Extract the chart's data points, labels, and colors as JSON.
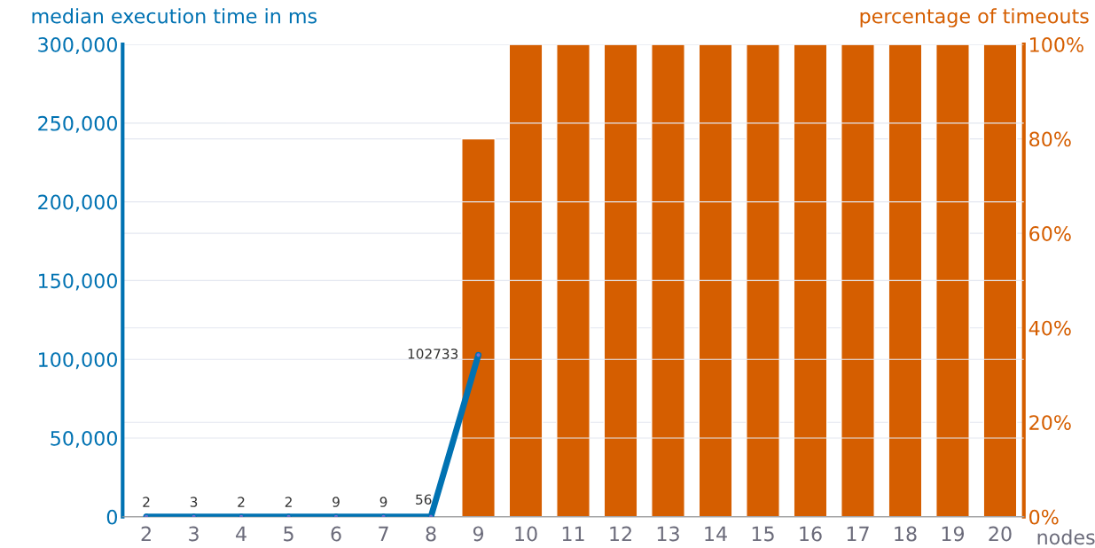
{
  "chart_data": {
    "type": "bar",
    "categories": [
      "2",
      "3",
      "4",
      "5",
      "6",
      "7",
      "8",
      "9",
      "10",
      "11",
      "12",
      "13",
      "14",
      "15",
      "16",
      "17",
      "18",
      "19",
      "20"
    ],
    "xlabel": "nodes",
    "ylabel": "median execution time in ms",
    "y2label": "percentage of timeouts",
    "series": [
      {
        "axis": "y2",
        "color": "#d55e00",
        "values": [
          null,
          null,
          null,
          null,
          null,
          null,
          null,
          80,
          100,
          100,
          100,
          100,
          100,
          100,
          100,
          100,
          100,
          100,
          100
        ]
      },
      {
        "type": "line",
        "axis": "y",
        "color": "#0072b2",
        "marker": "circle",
        "values": [
          2,
          3,
          2,
          2,
          9,
          9,
          56,
          102733,
          null,
          null,
          null,
          null,
          null,
          null,
          null,
          null,
          null,
          null,
          null
        ],
        "value_labels": [
          "2",
          "3",
          "2",
          "2",
          "9",
          "9",
          "56",
          "102733",
          null,
          null,
          null,
          null,
          null,
          null,
          null,
          null,
          null,
          null,
          null
        ]
      }
    ],
    "ylim": [
      0,
      300000
    ],
    "yticks": [
      0,
      {
        "value": 50000,
        "label": "50,000"
      },
      {
        "value": 100000,
        "label": "100,000"
      },
      {
        "value": 150000,
        "label": "150,000"
      },
      {
        "value": 200000,
        "label": "200,000"
      },
      {
        "value": 250000,
        "label": "250,000"
      },
      {
        "value": 300000,
        "label": "300,000"
      }
    ],
    "y2lim": [
      0,
      100
    ],
    "y2ticks": [
      {
        "value": 0,
        "label": "0%"
      },
      {
        "value": 20,
        "label": "20%"
      },
      {
        "value": 40,
        "label": "40%"
      },
      {
        "value": 60,
        "label": "60%"
      },
      {
        "value": 80,
        "label": "80%"
      },
      {
        "value": 100,
        "label": "100%"
      }
    ],
    "grid": "y"
  }
}
